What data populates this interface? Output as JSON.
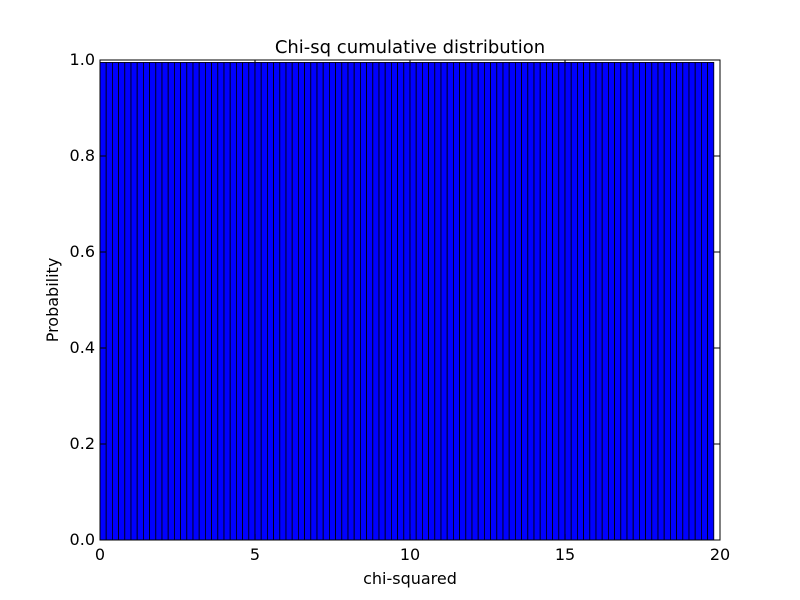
{
  "chart_data": {
    "type": "bar",
    "title": "Chi-sq cumulative distribution",
    "xlabel": "chi-squared",
    "ylabel": "Probability",
    "xlim": [
      0,
      20
    ],
    "ylim": [
      0,
      1.0
    ],
    "xticks": [
      "0",
      "5",
      "10",
      "15",
      "20"
    ],
    "yticks": [
      "0.0",
      "0.2",
      "0.4",
      "0.6",
      "0.8",
      "1.0"
    ],
    "grid": false,
    "bar_color": "#0000ff",
    "edge_color": "#000000",
    "bin_start": 0,
    "bin_width": 0.2,
    "values": [
      0.995,
      0.995,
      0.995,
      0.995,
      0.995,
      0.995,
      0.995,
      0.995,
      0.995,
      0.995,
      0.995,
      0.995,
      0.995,
      0.995,
      0.995,
      0.995,
      0.995,
      0.995,
      0.995,
      0.995,
      0.995,
      0.995,
      0.995,
      0.995,
      0.995,
      0.995,
      0.995,
      0.995,
      0.995,
      0.995,
      0.995,
      0.995,
      0.995,
      0.995,
      0.995,
      0.995,
      0.995,
      0.995,
      0.995,
      0.995,
      0.995,
      0.995,
      0.995,
      0.995,
      0.995,
      0.995,
      0.995,
      0.995,
      0.995,
      0.995,
      0.995,
      0.995,
      0.995,
      0.995,
      0.995,
      0.995,
      0.995,
      0.995,
      0.995,
      0.995,
      0.995,
      0.995,
      0.995,
      0.995,
      0.995,
      0.995,
      0.995,
      0.995,
      0.995,
      0.995,
      0.995,
      0.995,
      0.995,
      0.995,
      0.995,
      0.995,
      0.995,
      0.995,
      0.995,
      0.995,
      0.995,
      0.995,
      0.995,
      0.995,
      0.995,
      0.995,
      0.995,
      0.995,
      0.995,
      0.995,
      0.995,
      0.995,
      0.995,
      0.995,
      0.995,
      0.995,
      0.995,
      0.995,
      0.995
    ]
  }
}
